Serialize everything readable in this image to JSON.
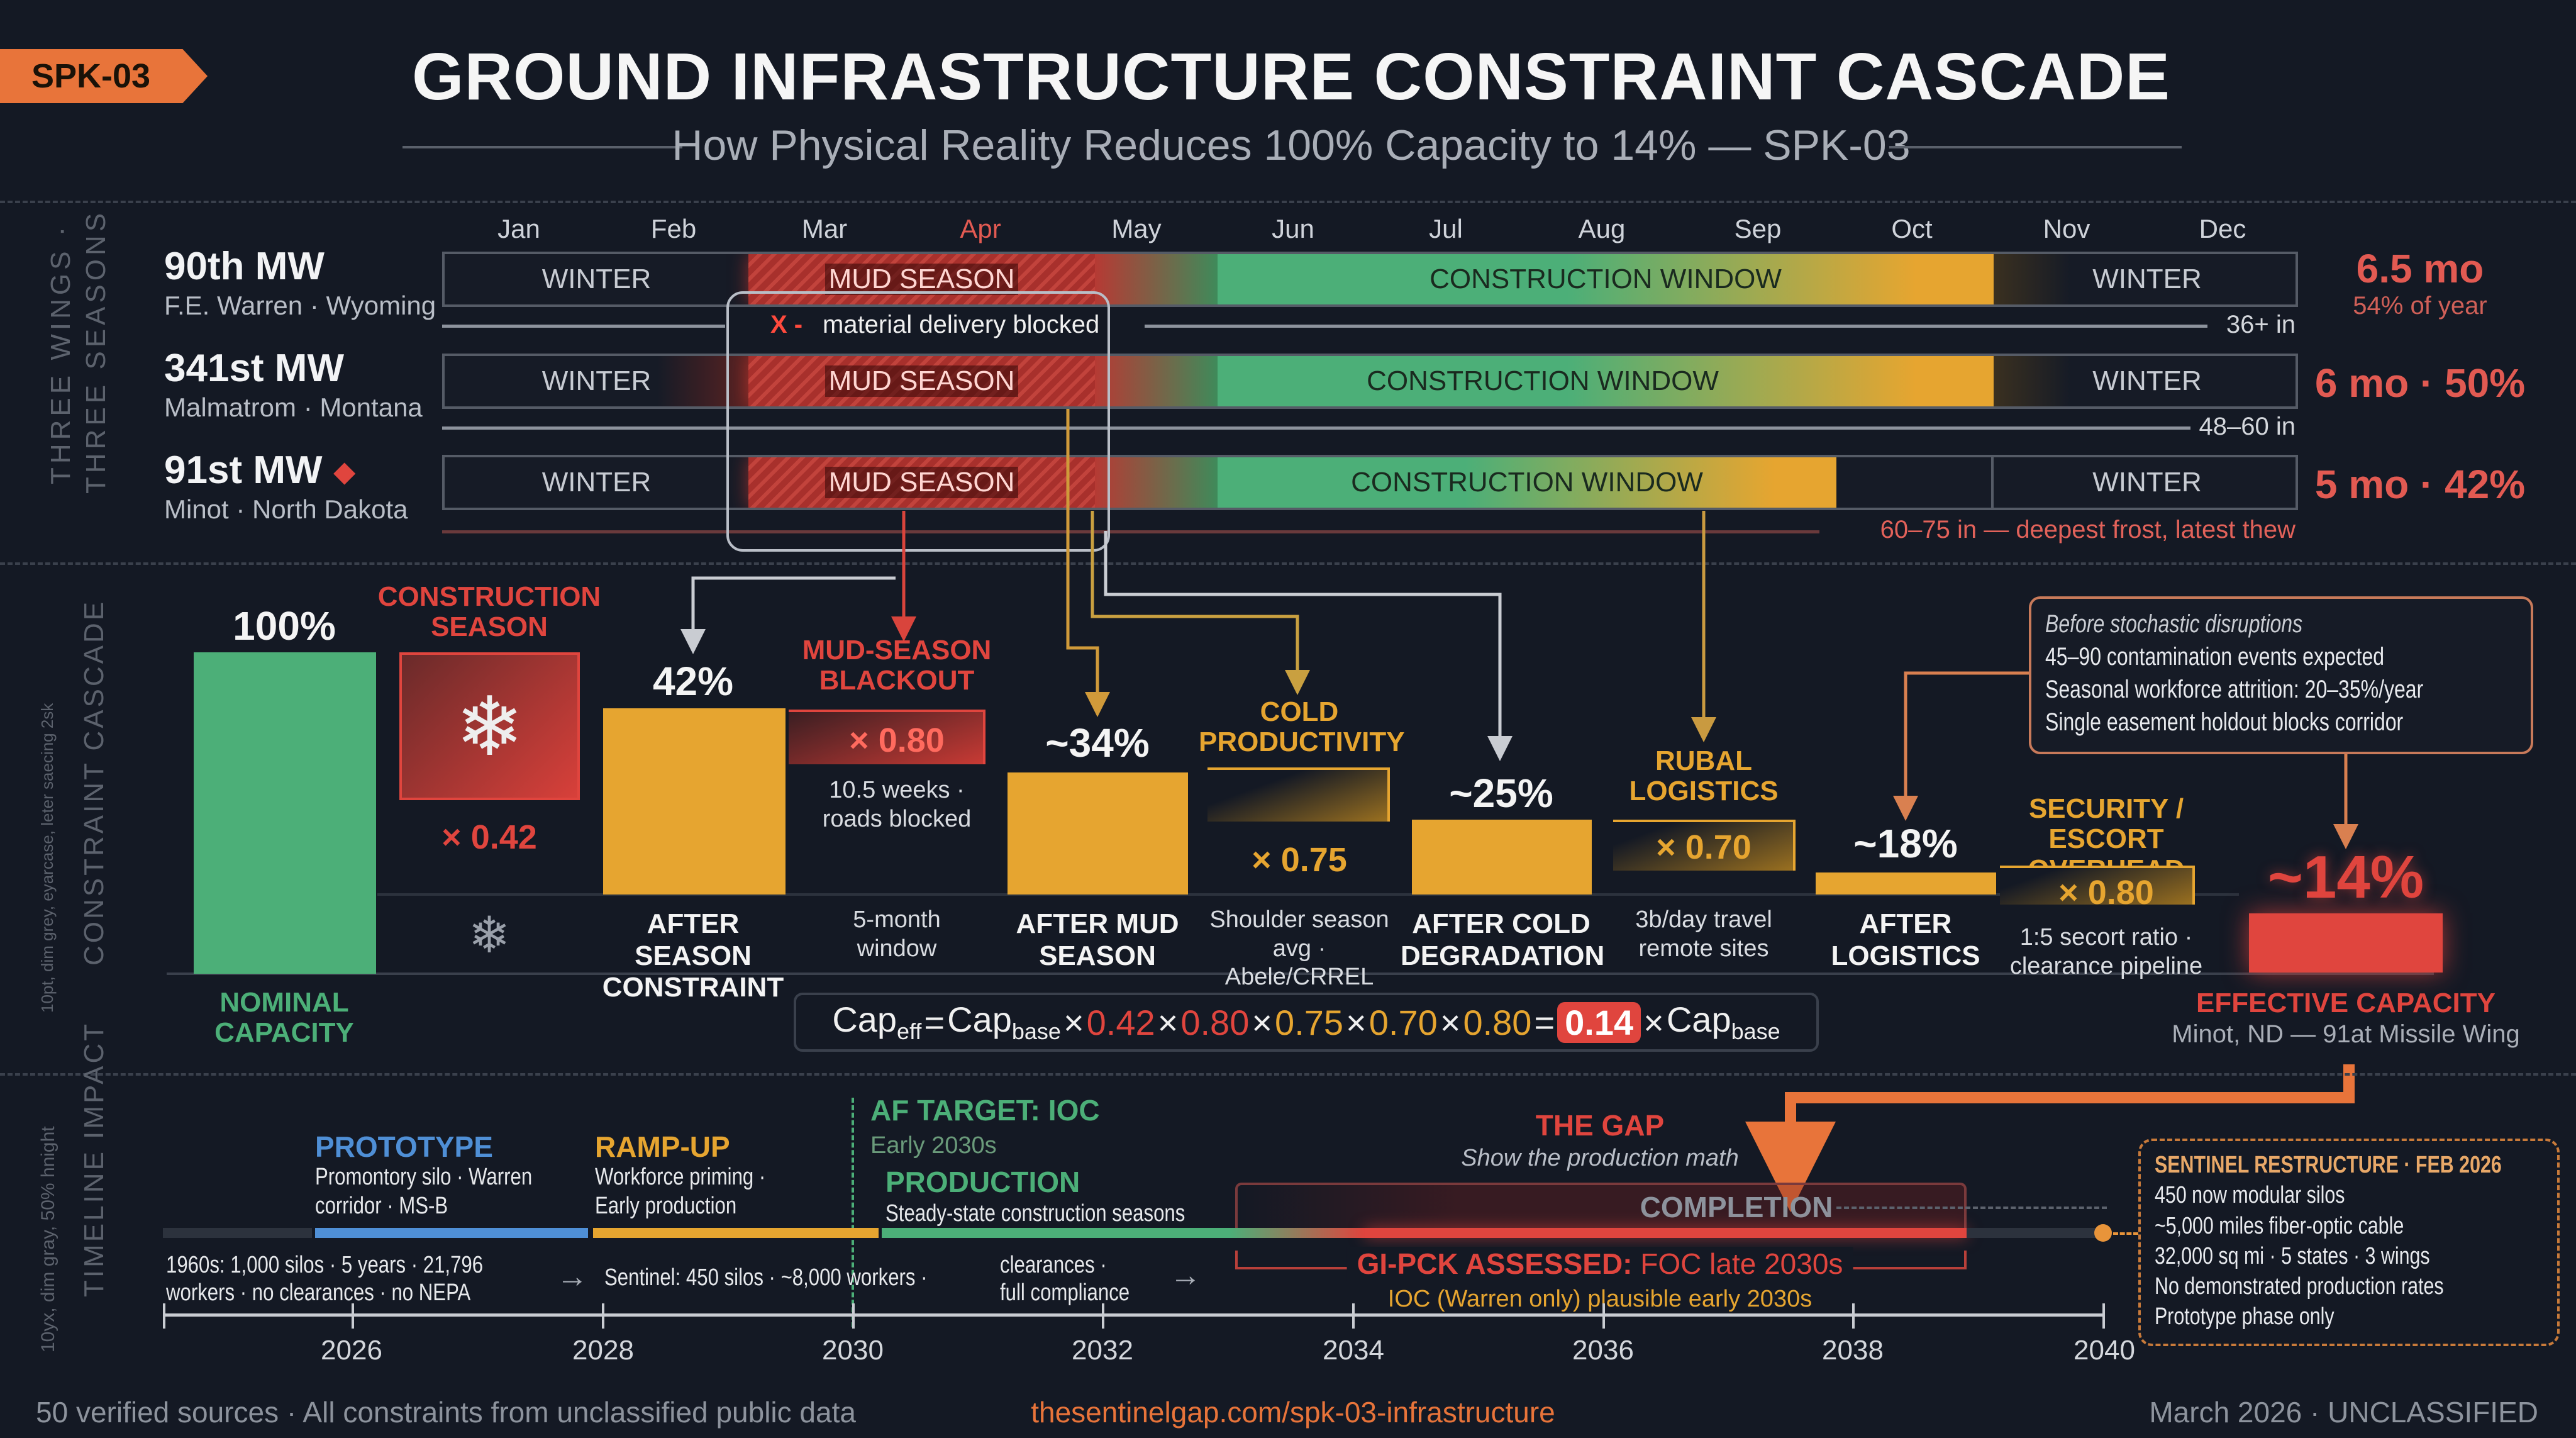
{
  "header": {
    "tag": "SPK-03",
    "title": "GROUND INFRASTRUCTURE CONSTRAINT CASCADE",
    "subtitle": "How Physical Reality Reduces 100% Capacity to 14% — SPK-03"
  },
  "seasons": {
    "section_label_1": "THREE WINGS ·",
    "section_label_2": "THREE SEASONS",
    "months": [
      "Jan",
      "Feb",
      "Mar",
      "Apr",
      "May",
      "Jun",
      "Jul",
      "Aug",
      "Sep",
      "Oct",
      "Nov",
      "Dec"
    ],
    "highlight_month": "Apr",
    "winter_label": "WINTER",
    "mud_label": "MUD SEASON",
    "construction_label": "CONSTRUCTION WINDOW",
    "blocked_marker": "X -",
    "blocked_note": "material delivery blocked",
    "wings": [
      {
        "name": "90th MW",
        "location": "F.E. Warren · Wyoming",
        "frost": "36+ in",
        "stat": "6.5 mo",
        "stat_sub": "54% of year"
      },
      {
        "name": "341st MW",
        "location": "Malmatrom · Montana",
        "frost": "48–60 in",
        "stat": "6 mo · 50%"
      },
      {
        "name": "91st MW",
        "marker": "◆",
        "location": "Minot · North Dakota",
        "frost": "60–75 in — deepest frost, latest thew",
        "stat": "5 mo · 42%"
      }
    ]
  },
  "cascade": {
    "section_label": "CONSTRAINT CASCADE",
    "side_note": "10pt, dim grey, eyarcase, leter saecing 2sk",
    "nominal": {
      "value": "100%",
      "label": "NOMINAL CAPACITY"
    },
    "factors": [
      {
        "title": "CONSTRUCTION SEASON",
        "factor": "× 0.42",
        "note": ""
      },
      {
        "title": "MUD-SEASON BLACKOUT",
        "factor": "× 0.80",
        "note": "10.5 weeks · roads blocked",
        "bottom": "5-month window"
      },
      {
        "title": "COLD PRODUCTIVITY",
        "factor": "× 0.75",
        "bottom": "Shoulder season avg · Abele/CRREL"
      },
      {
        "title": "RUBAL LOGISTICS",
        "factor": "× 0.70",
        "bottom": "3b/day travel remote sites"
      },
      {
        "title": "SECURITY / ESCORT OVERHEAD",
        "factor": "× 0.80",
        "bottom": "1:5 secort ratio · clearance pipeline"
      }
    ],
    "results": [
      {
        "value": "42%",
        "label": "AFTER SEASON CONSTRAINT",
        "fraction": 0.42
      },
      {
        "value": "~34%",
        "label": "AFTER MUD SEASON",
        "fraction": 0.34
      },
      {
        "value": "~25%",
        "label": "AFTER COLD DEGRADATION",
        "fraction": 0.25
      },
      {
        "value": "~18%",
        "label": "AFTER LOGISTICS",
        "fraction": 0.18
      }
    ],
    "effective": {
      "value": "~14%",
      "label": "EFFECTIVE CAPACITY",
      "sub": "Minot, ND — 91at Missile Wing",
      "fraction": 0.14
    },
    "callout": {
      "title": "Before stochastic disruptions",
      "lines": [
        "45–90 contamination events expected",
        "Seasonal workforce attrition: 20–35%/year",
        "Single easement holdout blocks corridor"
      ]
    },
    "formula": {
      "lhs": "Cap",
      "lhs_sub": "eff",
      "eq": "=",
      "base": "Cap",
      "base_sub": "base",
      "factors": [
        "0.42",
        "0.80",
        "0.75",
        "0.70",
        "0.80"
      ],
      "times": "×",
      "result": "0.14"
    }
  },
  "timeline": {
    "section_label": "TIMELINE IMPACT",
    "side_note": "10yx, dim gray, 50% hnight",
    "years": [
      "2026",
      "2028",
      "2030",
      "2032",
      "2034",
      "2036",
      "2038",
      "2040"
    ],
    "phases": [
      {
        "title": "PROTOTYPE",
        "desc": [
          "Promontory silo · Warren",
          "corridor · MS-B"
        ],
        "color": "#4f8fd6"
      },
      {
        "title": "RAMP-UP",
        "desc": [
          "Workforce priming ·",
          "Early production"
        ],
        "color": "#e6a530"
      },
      {
        "title": "PRODUCTION",
        "desc": [
          "Steady-state construction seasons"
        ],
        "color": "#4caf78"
      }
    ],
    "af_target": {
      "title": "AF TARGET: IOC",
      "sub": "Early 2030s"
    },
    "gap": {
      "title": "THE GAP",
      "sub": "Show the production math"
    },
    "completion": "COMPLETION",
    "assessed": {
      "title": "GI-PCK ASSESSED:",
      "value": "FOC late 2030s",
      "sub": "IOC (Warren only) plausible early 2030s"
    },
    "history": [
      "1960s: 1,000 silos · 5 years · 21,796",
      "workers · no clearances · no NEPA"
    ],
    "sentinel": "Sentinel: 450 silos · ~8,000 workers ·",
    "compliance": [
      "clearances ·",
      "full compliance"
    ],
    "restructure": {
      "title": "SENTINEL RESTRUCTURE · FEB 2026",
      "lines": [
        "450 now modular silos",
        "~5,000 miles fiber-optic cable",
        "32,000 sq mi · 5 states · 3 wings",
        "No demonstrated production rates",
        "Prototype phase only"
      ]
    }
  },
  "footer": {
    "left": "50 verified sources · All constraints from unclassified public data",
    "center": "thesentinelgap.com/spk-03-infrastructure",
    "right": "March 2026 · UNCLASSIFIED"
  },
  "colors": {
    "background": "#141924",
    "green": "#4caf78",
    "amber": "#e6a530",
    "red": "#e0453e",
    "orange": "#e8743a",
    "blue": "#4f8fd6"
  }
}
